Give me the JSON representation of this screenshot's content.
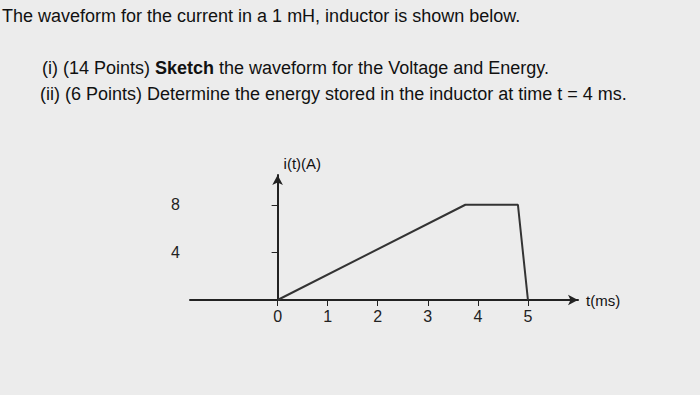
{
  "document": {
    "intro": "The waveform for the current in a 1 mH, inductor is shown below.",
    "questions": [
      [
        {
          "text": "(i) (14 Points) "
        },
        {
          "text": "Sketch",
          "bold": true
        },
        {
          "text": " the waveform for the Voltage and Energy."
        }
      ],
      [
        {
          "text": "(ii) (6 Points) Determine the energy stored in the inductor at time t = 4 ms."
        }
      ]
    ]
  },
  "chart_data": {
    "type": "line",
    "x_label": "t(ms)",
    "y_label": "i(t)(A)",
    "x": [
      0,
      3.75,
      4.8,
      5
    ],
    "values": [
      0,
      8,
      8,
      0
    ],
    "color": "#333333",
    "xlim": [
      -1.75,
      6
    ],
    "ylim": [
      0,
      10.5
    ],
    "xticks": [
      0,
      1,
      2,
      3,
      4,
      5
    ],
    "yticks": [
      4,
      8
    ],
    "grid": false,
    "line_style": "solid"
  }
}
